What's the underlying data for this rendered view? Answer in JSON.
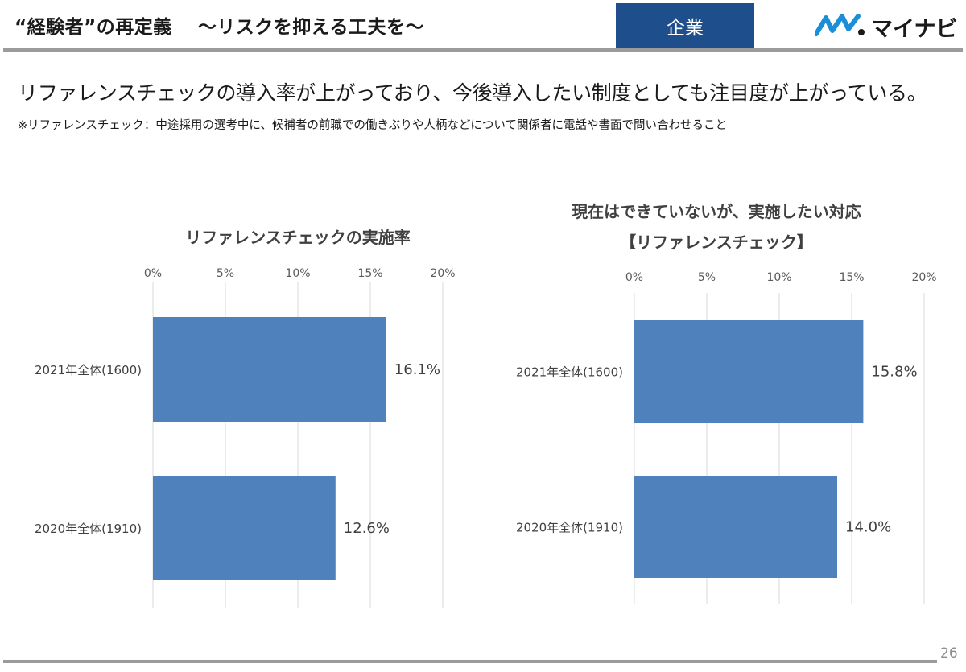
{
  "header": {
    "title": "“経験者”の再定義　 ～リスクを抑える工夫を～",
    "badge": "企業",
    "logo_text": "マイナビ",
    "logo_icon": "mynavi-mark-icon"
  },
  "headline": "リファレンスチェックの導入率が上がっており、今後導入したい制度としても注目度が上がっている。",
  "note": "※リファレンスチェック：中途採用の選考中に、候補者の前職での働きぶりや人柄などについて関係者に電話や書面で問い合わせること",
  "page_number": "26",
  "colors": {
    "bar": "#4f81bd",
    "badge": "#1f4e8c",
    "rule": "#9b9b9b",
    "grid": "#d9d9d9"
  },
  "chart_data": [
    {
      "type": "bar",
      "orientation": "horizontal",
      "title": "リファレンスチェックの実施率",
      "title_lines": [
        "リファレンスチェックの実施率"
      ],
      "categories": [
        "2021年全体(1600)",
        "2020年全体(1910)"
      ],
      "values": [
        16.1,
        12.6
      ],
      "value_labels": [
        "16.1%",
        "12.6%"
      ],
      "xlim": [
        0,
        20
      ],
      "ticks": [
        "0%",
        "5%",
        "10%",
        "15%",
        "20%"
      ],
      "tick_values": [
        0,
        5,
        10,
        15,
        20
      ],
      "grid": true,
      "axis_position": "top"
    },
    {
      "type": "bar",
      "orientation": "horizontal",
      "title": "現在はできていないが、実施したい対応【リファレンスチェック】",
      "title_lines": [
        "現在はできていないが、実施したい対応",
        "【リファレンスチェック】"
      ],
      "categories": [
        "2021年全体(1600)",
        "2020年全体(1910)"
      ],
      "values": [
        15.8,
        14.0
      ],
      "value_labels": [
        "15.8%",
        "14.0%"
      ],
      "xlim": [
        0,
        20
      ],
      "ticks": [
        "0%",
        "5%",
        "10%",
        "15%",
        "20%"
      ],
      "tick_values": [
        0,
        5,
        10,
        15,
        20
      ],
      "grid": true,
      "axis_position": "top"
    }
  ]
}
